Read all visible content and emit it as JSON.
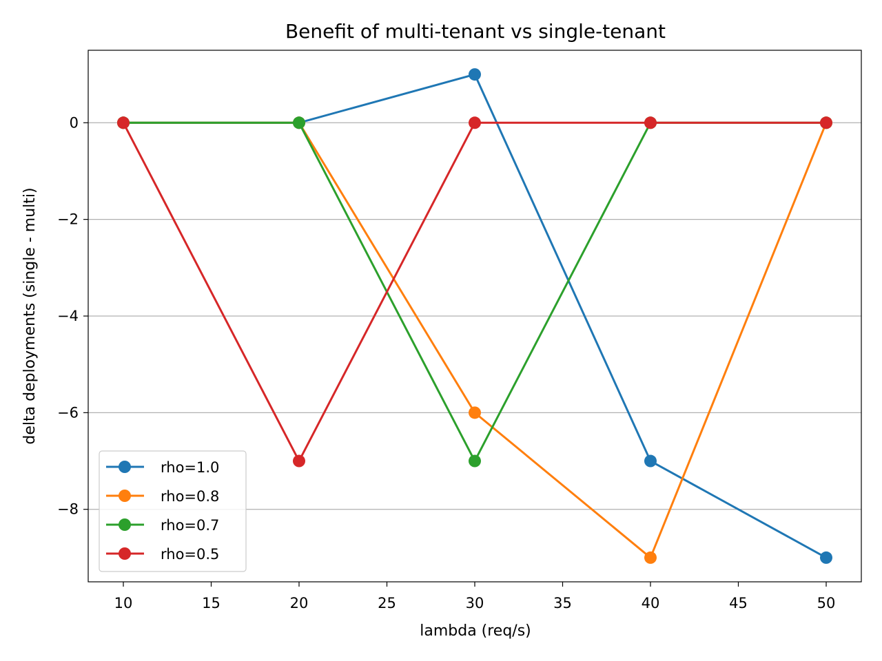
{
  "chart_data": {
    "type": "line",
    "title": "Benefit of multi-tenant vs single-tenant",
    "xlabel": "lambda (req/s)",
    "ylabel": "delta deployments (single - multi)",
    "x": [
      10,
      20,
      30,
      40,
      50
    ],
    "xlim": [
      8,
      52
    ],
    "ylim": [
      -9.5,
      1.5
    ],
    "xticks": [
      "10",
      "15",
      "20",
      "25",
      "30",
      "35",
      "40",
      "45",
      "50"
    ],
    "yticks": [
      "0",
      "−2",
      "−4",
      "−6",
      "−8"
    ],
    "grid": "y-major",
    "legend_position": "lower-left",
    "series": [
      {
        "name": "rho=1.0",
        "color": "#1f77b4",
        "values": [
          0,
          0,
          1,
          -7,
          -9
        ]
      },
      {
        "name": "rho=0.8",
        "color": "#ff7f0e",
        "values": [
          0,
          0,
          -6,
          -9,
          0
        ]
      },
      {
        "name": "rho=0.7",
        "color": "#2ca02c",
        "values": [
          0,
          0,
          -7,
          0,
          0
        ]
      },
      {
        "name": "rho=0.5",
        "color": "#d62728",
        "values": [
          0,
          -7,
          0,
          0,
          0
        ]
      }
    ]
  }
}
